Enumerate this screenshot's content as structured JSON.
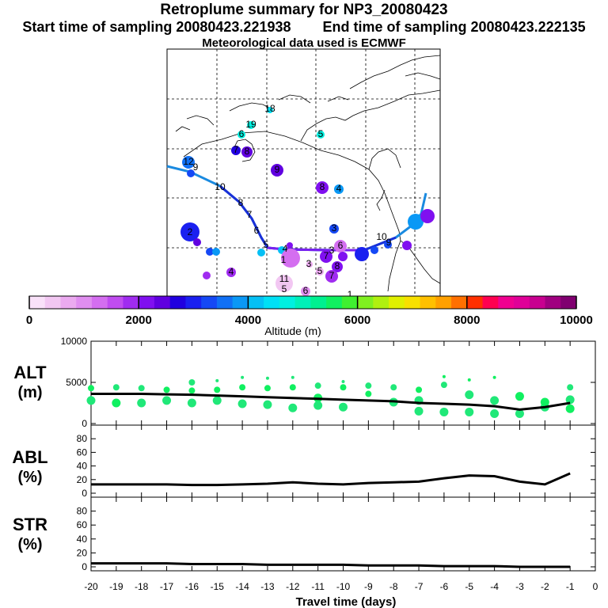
{
  "header": {
    "title": "Retroplume summary for NP3_20080423",
    "start_label": "Start time of sampling 20080423.221938",
    "end_label": "End time of sampling 20080423.222135",
    "met_label": "Meteorological data used is ECMWF"
  },
  "colorbar": {
    "label": "Altitude (m)",
    "ticks": [
      "0",
      "2000",
      "4000",
      "6000",
      "8000",
      "10000"
    ],
    "colors": [
      "#f9e1f9",
      "#f2c7f2",
      "#ebaaf0",
      "#e08ef0",
      "#d46ef0",
      "#c04cf0",
      "#a02cf0",
      "#8010f0",
      "#6000e0",
      "#2000e0",
      "#1a20f0",
      "#1548f5",
      "#1070f5",
      "#0a98f5",
      "#05c0f5",
      "#00e0f5",
      "#00f0e0",
      "#00f0b8",
      "#00f090",
      "#10f060",
      "#40f030",
      "#80f020",
      "#b0f010",
      "#e0f000",
      "#f8e000",
      "#ffc000",
      "#ffa000",
      "#ff7000",
      "#ff3000",
      "#ff0050",
      "#f00090",
      "#e00098",
      "#c80090",
      "#a00080",
      "#800070"
    ]
  },
  "panels": {
    "alt": {
      "label_top": "ALT",
      "label_bottom": "(m)",
      "ticks": [
        "0",
        "5000",
        "10000"
      ]
    },
    "abl": {
      "label_top": "ABL",
      "label_bottom": "(%)",
      "ticks": [
        "0",
        "20",
        "40",
        "60",
        "80"
      ]
    },
    "str": {
      "label_top": "STR",
      "label_bottom": "(%)",
      "ticks": [
        "0",
        "20",
        "40",
        "60",
        "80"
      ]
    }
  },
  "xaxis": {
    "label": "Travel time (days)",
    "ticks": [
      "-20",
      "-19",
      "-18",
      "-17",
      "-16",
      "-15",
      "-14",
      "-13",
      "-12",
      "-11",
      "-10",
      "-9",
      "-8",
      "-7",
      "-6",
      "-5",
      "-4",
      "-3",
      "-2",
      "-1",
      "0"
    ]
  },
  "chart_data": {
    "type": "line",
    "x": [
      -20,
      -19,
      -18,
      -17,
      -16,
      -15,
      -14,
      -13,
      -12,
      -11,
      -10,
      -9,
      -8,
      -7,
      -6,
      -5,
      -4,
      -3,
      -2,
      -1
    ],
    "series": [
      {
        "name": "ALT mean (m)",
        "values": [
          3600,
          3600,
          3600,
          3550,
          3500,
          3400,
          3300,
          3200,
          3100,
          3000,
          2900,
          2800,
          2700,
          2500,
          2400,
          2300,
          2100,
          1700,
          2000,
          2500
        ]
      },
      {
        "name": "ABL (%)",
        "values": [
          13,
          13,
          13,
          13,
          12,
          12,
          13,
          14,
          16,
          14,
          13,
          15,
          16,
          17,
          22,
          26,
          25,
          17,
          13,
          29
        ]
      },
      {
        "name": "STR (%)",
        "values": [
          5,
          5,
          5,
          5,
          4,
          4,
          4,
          3,
          3,
          3,
          3,
          2,
          2,
          2,
          1,
          1,
          1,
          0,
          0,
          0
        ]
      }
    ],
    "alt_clusters": [
      [
        -20,
        4300
      ],
      [
        -20,
        2800
      ],
      [
        -19,
        4400
      ],
      [
        -19,
        2500
      ],
      [
        -18,
        4300
      ],
      [
        -18,
        2500
      ],
      [
        -17,
        4100
      ],
      [
        -17,
        2800
      ],
      [
        -16,
        5000
      ],
      [
        -16,
        4000
      ],
      [
        -16,
        2500
      ],
      [
        -15,
        5200
      ],
      [
        -15,
        4100
      ],
      [
        -15,
        2800
      ],
      [
        -14,
        5600
      ],
      [
        -14,
        4400
      ],
      [
        -14,
        2400
      ],
      [
        -13,
        5500
      ],
      [
        -13,
        4300
      ],
      [
        -13,
        2300
      ],
      [
        -12,
        5600
      ],
      [
        -12,
        4400
      ],
      [
        -12,
        1900
      ],
      [
        -11,
        4600
      ],
      [
        -11,
        3100
      ],
      [
        -11,
        2200
      ],
      [
        -10,
        5100
      ],
      [
        -10,
        4400
      ],
      [
        -10,
        2000
      ],
      [
        -9,
        4600
      ],
      [
        -9,
        3600
      ],
      [
        -8,
        4400
      ],
      [
        -8,
        2600
      ],
      [
        -7,
        4100
      ],
      [
        -7,
        2800
      ],
      [
        -7,
        1500
      ],
      [
        -6,
        5700
      ],
      [
        -6,
        4700
      ],
      [
        -6,
        1400
      ],
      [
        -5,
        5300
      ],
      [
        -5,
        3500
      ],
      [
        -5,
        1400
      ],
      [
        -4,
        5600
      ],
      [
        -4,
        2800
      ],
      [
        -4,
        1200
      ],
      [
        -3,
        3300
      ],
      [
        -3,
        1200
      ],
      [
        -2,
        2000
      ],
      [
        -2,
        2600
      ],
      [
        -1,
        4400
      ],
      [
        -1,
        2900
      ],
      [
        -1,
        1800
      ]
    ],
    "xlabel": "Travel time (days)",
    "xlim": [
      -20,
      0
    ],
    "alt_ylim": [
      0,
      10000
    ],
    "pct_ylim": [
      0,
      100
    ],
    "map_labels": [
      "18",
      "19",
      "5",
      "6",
      "7",
      "8",
      "9",
      "12",
      "10",
      "8",
      "7",
      "6",
      "5",
      "4",
      "3",
      "2",
      "1",
      "3",
      "1",
      "11",
      "4",
      "5",
      "6",
      "7",
      "8",
      "9",
      "3",
      "4",
      "5",
      "6",
      "7",
      "8",
      "9",
      "10"
    ]
  }
}
